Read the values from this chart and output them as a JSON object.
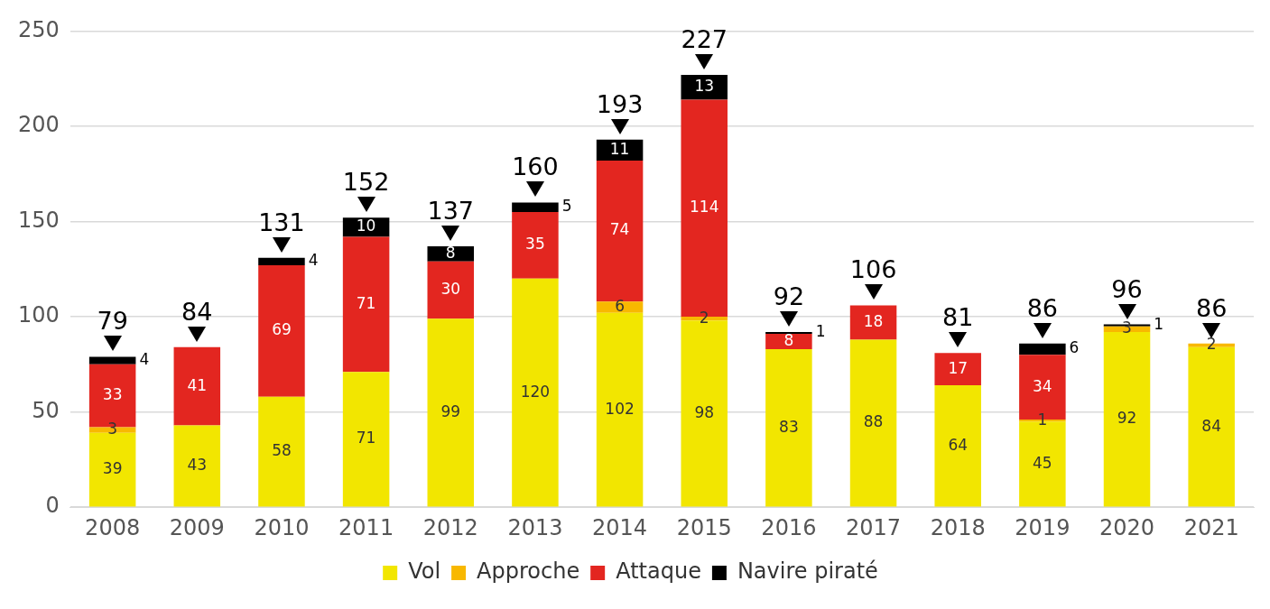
{
  "chart_data": {
    "type": "bar",
    "stacked": true,
    "categories": [
      "2008",
      "2009",
      "2010",
      "2011",
      "2012",
      "2013",
      "2014",
      "2015",
      "2016",
      "2017",
      "2018",
      "2019",
      "2020",
      "2021"
    ],
    "series": [
      {
        "name": "Vol",
        "color": "#f2e600",
        "values": [
          39,
          43,
          58,
          71,
          99,
          120,
          102,
          98,
          83,
          88,
          64,
          45,
          92,
          84
        ],
        "value_labels": [
          "39",
          "43",
          "58",
          "71",
          "99",
          "120",
          "102",
          "98",
          "83",
          "88",
          "64",
          "45",
          "92",
          "84"
        ]
      },
      {
        "name": "Approche",
        "color": "#f8b800",
        "values": [
          3,
          0,
          0,
          0,
          0,
          0,
          6,
          2,
          0,
          0,
          0,
          1,
          3,
          2
        ],
        "value_labels": [
          "3",
          null,
          null,
          null,
          null,
          null,
          "6",
          "2",
          null,
          null,
          null,
          "1",
          "3",
          "2"
        ]
      },
      {
        "name": "Attaque",
        "color": "#e32620",
        "values": [
          33,
          41,
          69,
          71,
          30,
          35,
          74,
          114,
          8,
          18,
          17,
          34,
          0,
          0
        ],
        "value_labels": [
          "33",
          "41",
          "69",
          "71",
          "30",
          "35",
          "74",
          "114",
          "8",
          "18",
          "17",
          "34",
          null,
          null
        ]
      },
      {
        "name": "Navire piraté",
        "color": "#000000",
        "values": [
          4,
          0,
          4,
          10,
          8,
          5,
          11,
          13,
          1,
          0,
          0,
          6,
          1,
          0
        ],
        "value_labels": [
          "4",
          null,
          "4",
          "10",
          "8",
          "5",
          "11",
          "13",
          "1",
          null,
          null,
          "6",
          "1",
          null
        ]
      }
    ],
    "totals": [
      "79",
      "84",
      "131",
      "152",
      "137",
      "160",
      "193",
      "227",
      "92",
      "106",
      "81",
      "86",
      "96",
      "86"
    ],
    "ylim": [
      0,
      250
    ],
    "yticks": [
      0,
      50,
      100,
      150,
      200,
      250
    ],
    "grid": "y",
    "legend": "bottom"
  }
}
